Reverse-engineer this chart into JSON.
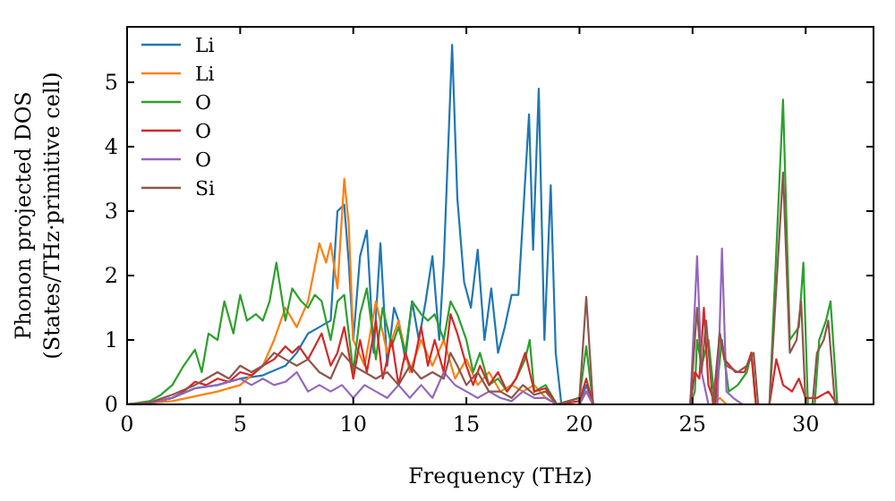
{
  "chart_data": {
    "type": "line",
    "xlabel": "Frequency (THz)",
    "ylabel": "Phonon projected DOS\n(States/THz·primitive cell)",
    "xlim": [
      0,
      33
    ],
    "ylim": [
      0,
      5.86
    ],
    "xticks": [
      0,
      5,
      10,
      15,
      20,
      25,
      30
    ],
    "yticks": [
      0,
      1,
      2,
      3,
      4,
      5
    ],
    "legend": "top left",
    "series": [
      {
        "name": "Li",
        "color": "#1f77b4",
        "x": [
          0,
          1,
          2,
          3,
          4,
          5,
          6,
          7,
          7.5,
          8,
          8.5,
          9,
          9.3,
          9.6,
          9.8,
          10,
          10.3,
          10.6,
          10.9,
          11.2,
          11.5,
          11.8,
          12,
          12.3,
          12.6,
          12.9,
          13.2,
          13.5,
          13.8,
          14,
          14.37,
          14.6,
          14.9,
          15.2,
          15.5,
          15.8,
          16.1,
          16.4,
          16.7,
          17,
          17.3,
          17.77,
          17.95,
          18.2,
          18.45,
          18.73,
          18.95,
          19.2,
          20,
          20.3,
          20.6,
          25.9
        ],
        "values": [
          0,
          0.02,
          0.1,
          0.25,
          0.3,
          0.4,
          0.45,
          0.6,
          0.8,
          1.1,
          1.2,
          1.3,
          3.0,
          3.1,
          2.2,
          1.0,
          2.3,
          2.7,
          0.8,
          2.5,
          0.6,
          1.5,
          1.3,
          0.7,
          1.6,
          1.0,
          1.6,
          2.3,
          1.0,
          2.2,
          5.58,
          3.2,
          1.9,
          1.5,
          2.4,
          1.0,
          1.8,
          0.8,
          1.2,
          1.7,
          1.7,
          4.5,
          2.4,
          4.9,
          1.0,
          3.4,
          0.8,
          0,
          0,
          0.3,
          0,
          0
        ]
      },
      {
        "name": "Li",
        "color": "#ff7f0e",
        "x": [
          0,
          2,
          4,
          5,
          6,
          6.5,
          7,
          7.5,
          8,
          8.5,
          8.8,
          9,
          9.3,
          9.6,
          9.8,
          10,
          10.5,
          11,
          11.5,
          12,
          12.5,
          13,
          13.5,
          14,
          14.5,
          15,
          15.5,
          16,
          16.5,
          17,
          17.5,
          18,
          18.5,
          19,
          20,
          20.3,
          20.6,
          25.9,
          26.2,
          26.5
        ],
        "values": [
          0,
          0.05,
          0.2,
          0.3,
          0.6,
          1.0,
          1.5,
          1.2,
          1.6,
          2.5,
          2.2,
          2.5,
          1.8,
          3.5,
          2.8,
          1.0,
          0.6,
          1.6,
          0.8,
          1.3,
          0.5,
          1.0,
          0.6,
          1.0,
          0.4,
          0.7,
          0.3,
          0.5,
          0.2,
          0.3,
          0.2,
          0.3,
          0.1,
          0,
          0,
          0.2,
          0,
          0,
          0.1,
          0
        ]
      },
      {
        "name": "O",
        "color": "#2ca02c",
        "x": [
          0,
          1,
          1.5,
          2,
          2.5,
          3,
          3.3,
          3.6,
          4,
          4.3,
          4.7,
          5,
          5.3,
          5.7,
          6,
          6.3,
          6.6,
          7,
          7.3,
          7.7,
          8,
          8.3,
          8.6,
          9,
          9.3,
          9.6,
          10,
          10.3,
          10.6,
          11,
          11.3,
          11.7,
          12,
          12.3,
          12.6,
          13,
          13.3,
          13.6,
          14,
          14.3,
          14.6,
          15,
          15.3,
          15.6,
          16,
          16.4,
          16.8,
          17.2,
          17.6,
          17.8,
          18,
          18.5,
          19,
          20,
          20.3,
          20.6,
          24.9,
          25.1,
          25.2,
          25.4,
          25.7,
          26,
          26.3,
          26.6,
          27,
          27.4,
          27.6,
          27.8,
          28.4,
          29.0,
          29.3,
          29.7,
          29.9,
          30.1,
          30.4,
          30.6,
          30.9,
          31.1,
          31.4
        ],
        "values": [
          0,
          0.05,
          0.15,
          0.3,
          0.6,
          0.85,
          0.5,
          1.1,
          1.0,
          1.6,
          1.1,
          1.7,
          1.3,
          1.4,
          1.3,
          1.6,
          2.2,
          1.3,
          1.8,
          1.6,
          1.5,
          1.7,
          1.6,
          1.0,
          1.6,
          1.7,
          0.5,
          1.4,
          1.8,
          0.7,
          1.5,
          0.9,
          1.2,
          0.8,
          1.6,
          1.4,
          1.3,
          1.4,
          1.0,
          1.6,
          1.4,
          1.0,
          0.5,
          0.8,
          0.3,
          0.4,
          0.2,
          0.4,
          0.7,
          1.0,
          0.2,
          0.3,
          0,
          0.1,
          0.9,
          0,
          0,
          0.2,
          1.0,
          0.6,
          1.0,
          0,
          1.0,
          0.2,
          0.3,
          0.5,
          0.8,
          0,
          0,
          4.73,
          1.0,
          1.2,
          2.2,
          0,
          0,
          1.0,
          1.3,
          1.6,
          0
        ]
      },
      {
        "name": "O",
        "color": "#d62728",
        "x": [
          0,
          1,
          2,
          2.5,
          3,
          3.5,
          4,
          4.5,
          5,
          5.5,
          6,
          6.5,
          7,
          7.3,
          7.6,
          8,
          8.3,
          8.6,
          9,
          9.3,
          9.6,
          10,
          10.3,
          10.6,
          11,
          11.3,
          11.7,
          12,
          12.3,
          12.6,
          13,
          13.3,
          13.6,
          14,
          14.3,
          14.6,
          15,
          15.3,
          15.6,
          16,
          16.4,
          16.8,
          17.2,
          17.6,
          18,
          18.5,
          19,
          20,
          20.3,
          20.6,
          24.9,
          25.1,
          25.3,
          25.5,
          25.7,
          26,
          26.2,
          26.4,
          26.9,
          27.3,
          27.6,
          27.8,
          28.4,
          28.7,
          29,
          29.4,
          29.7,
          30,
          30.5,
          31,
          31.4
        ],
        "values": [
          0,
          0.02,
          0.1,
          0.2,
          0.35,
          0.3,
          0.4,
          0.35,
          0.5,
          0.45,
          0.6,
          0.7,
          0.9,
          0.8,
          0.9,
          0.7,
          0.9,
          1.1,
          0.6,
          0.8,
          1.2,
          0.4,
          1.0,
          0.5,
          1.3,
          0.4,
          1.0,
          0.3,
          0.8,
          0.5,
          1.2,
          0.6,
          1.0,
          0.5,
          1.4,
          1.1,
          0.6,
          0.3,
          0.6,
          0.3,
          0.5,
          0.2,
          0.4,
          0.8,
          0.2,
          0.25,
          0,
          0.05,
          0.4,
          0,
          0,
          0.5,
          0.4,
          1.5,
          0.3,
          0,
          1.1,
          0.7,
          0.5,
          0.5,
          0.8,
          0,
          0,
          0.7,
          0.3,
          0.2,
          0.4,
          0.1,
          0.1,
          0.2,
          0
        ]
      },
      {
        "name": "O",
        "color": "#9467bd",
        "x": [
          0,
          1,
          2,
          3,
          4,
          5,
          5.5,
          6,
          6.5,
          7,
          7.5,
          8,
          8.5,
          9,
          9.5,
          10,
          10.5,
          11,
          11.5,
          12,
          12.5,
          13,
          13.5,
          14,
          14.5,
          15,
          15.5,
          16,
          16.5,
          17,
          17.5,
          18,
          18.5,
          19,
          20,
          20.3,
          20.6,
          24.9,
          25.2,
          25.4,
          25.7,
          26.1,
          26.3,
          26.5,
          26.8,
          27.2
        ],
        "values": [
          0,
          0.02,
          0.1,
          0.25,
          0.3,
          0.4,
          0.3,
          0.4,
          0.3,
          0.35,
          0.5,
          0.2,
          0.3,
          0.2,
          0.3,
          0.1,
          0.3,
          0.2,
          0.1,
          0.3,
          0.1,
          0.3,
          0.1,
          0.5,
          0.3,
          0.2,
          0.1,
          0.2,
          0.1,
          0.05,
          0.2,
          0.1,
          0.1,
          0,
          0,
          0.2,
          0,
          0,
          2.3,
          0.5,
          0,
          0,
          2.42,
          0.2,
          0.1,
          0
        ]
      },
      {
        "name": "Si",
        "color": "#8c564b",
        "x": [
          0,
          1,
          2,
          3,
          3.5,
          4,
          4.5,
          5,
          5.5,
          6,
          6.5,
          7,
          7.5,
          8,
          8.5,
          9,
          9.5,
          10,
          10.5,
          11,
          11.5,
          12,
          12.5,
          13,
          13.5,
          14,
          14.3,
          14.6,
          15,
          15.5,
          16,
          16.5,
          17,
          17.5,
          18,
          18.5,
          19,
          20,
          20.3,
          20.6,
          24.9,
          25.2,
          25.4,
          25.6,
          25.9,
          26.2,
          26.5,
          27,
          27.4,
          27.7,
          27.9,
          28.4,
          29.0,
          29.3,
          29.6,
          29.8,
          30,
          30.3,
          30.5,
          30.8,
          31,
          31.3
        ],
        "values": [
          0,
          0.03,
          0.15,
          0.3,
          0.4,
          0.5,
          0.4,
          0.6,
          0.5,
          0.6,
          0.8,
          0.7,
          0.6,
          0.7,
          0.5,
          0.4,
          0.8,
          0.6,
          0.5,
          0.4,
          0.5,
          0.3,
          0.6,
          0.4,
          0.5,
          0.4,
          0.8,
          0.6,
          0.3,
          0.5,
          0.2,
          0.2,
          0.1,
          0.3,
          0.15,
          0.2,
          0,
          0.1,
          1.67,
          0,
          0,
          1.5,
          0.5,
          1.3,
          0,
          1.1,
          0.6,
          0.5,
          0.6,
          0.8,
          0,
          0,
          3.6,
          0.8,
          1.0,
          1.6,
          0,
          0,
          0.8,
          1.0,
          1.3,
          0
        ]
      }
    ]
  }
}
